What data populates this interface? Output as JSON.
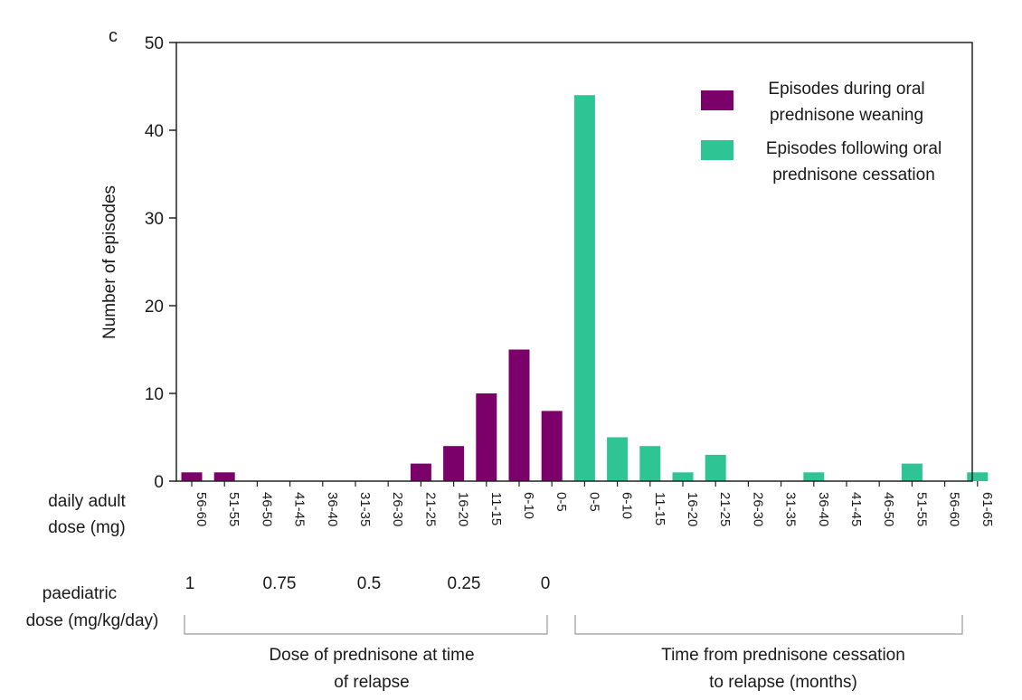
{
  "panel_letter": "c",
  "chart_data": {
    "type": "bar",
    "ylabel": "Number of episodes",
    "ylim": [
      0,
      50
    ],
    "yticks": [
      0,
      10,
      20,
      30,
      40,
      50
    ],
    "grid": false,
    "legend_position": "top-right",
    "series": [
      {
        "name": "Episodes during oral prednisone weaning",
        "color": "#7b0069",
        "categories": [
          "56-60",
          "51-55",
          "46-50",
          "41-45",
          "36-40",
          "31-35",
          "26-30",
          "21-25",
          "16-20",
          "11-15",
          "6-10",
          "0-5"
        ],
        "values": [
          1,
          1,
          0,
          0,
          0,
          0,
          0,
          2,
          4,
          10,
          15,
          8
        ]
      },
      {
        "name": "Episodes following oral prednisone cessation",
        "color": "#2fc494",
        "categories": [
          "0-5",
          "6-10",
          "11-15",
          "16-20",
          "21-25",
          "26-30",
          "31-35",
          "36-40",
          "41-45",
          "46-50",
          "51-55",
          "56-60",
          "61-65"
        ],
        "values": [
          44,
          5,
          4,
          1,
          3,
          0,
          0,
          1,
          0,
          0,
          2,
          0,
          1
        ]
      }
    ],
    "legend": [
      {
        "line1": "Episodes during oral",
        "line2": "prednisone weaning"
      },
      {
        "line1": "Episodes following oral",
        "line2": "prednisone cessation"
      }
    ],
    "row_labels": {
      "adult": [
        "daily adult",
        "dose (mg)"
      ],
      "paediatric": [
        "paediatric",
        "dose (mg/kg/day)"
      ]
    },
    "paediatric_ticks": [
      "1",
      "0.75",
      "0.5",
      "0.25",
      "0"
    ],
    "group_labels": {
      "left": [
        "Dose of prednisone at time",
        "of relapse"
      ],
      "right": [
        "Time from prednisone cessation",
        "to relapse (months)"
      ]
    }
  }
}
